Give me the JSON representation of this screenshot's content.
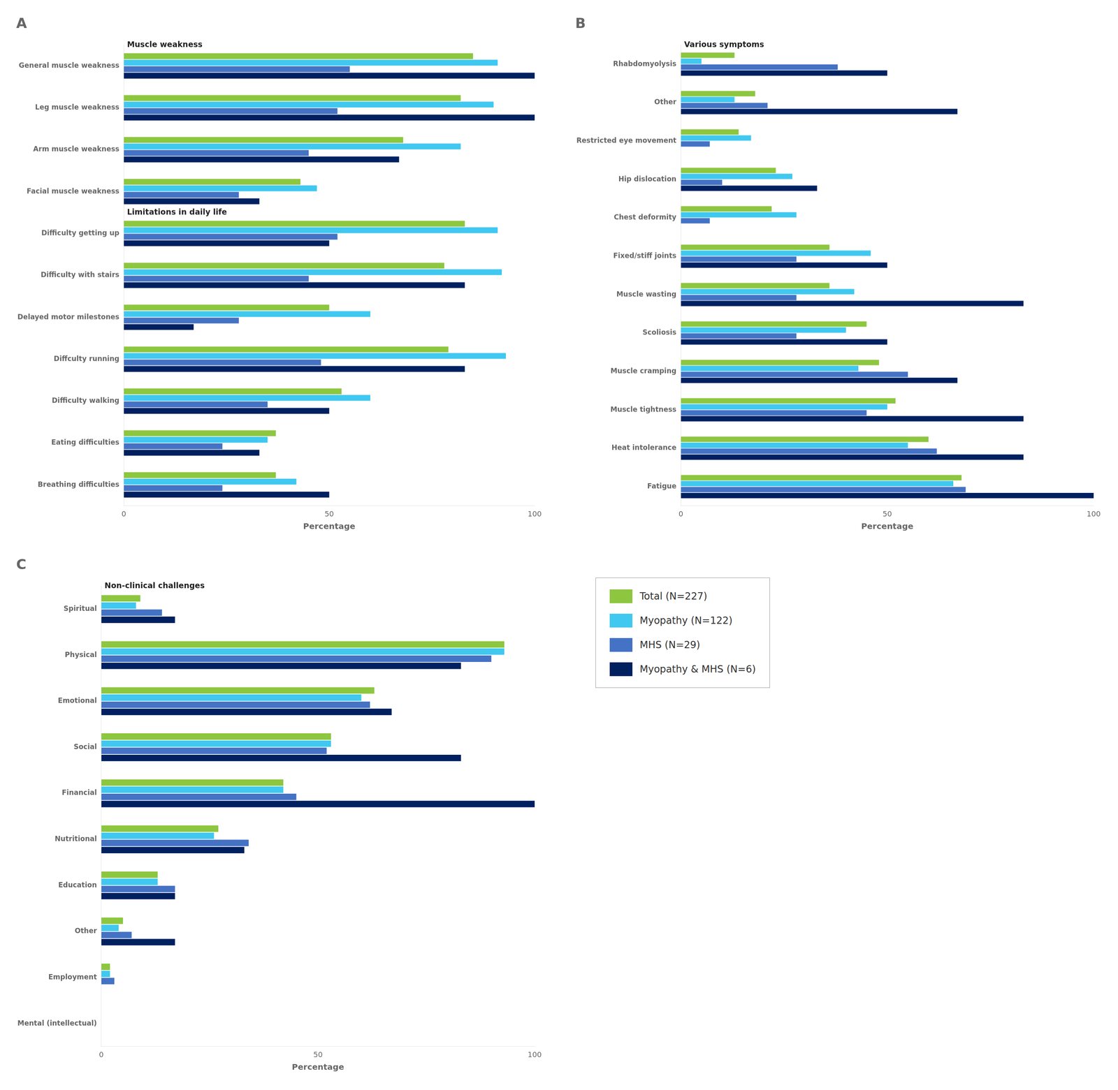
{
  "chart_data": [
    {
      "type": "bar",
      "orientation": "horizontal",
      "title": "A",
      "annotations": [
        {
          "text": "Muscle weakness",
          "above": "General muscle weakness"
        },
        {
          "text": "Limitations in daily life",
          "above": "Difficulty getting up"
        }
      ],
      "categories": [
        "General muscle weakness",
        "Leg muscle weakness",
        "Arm muscle weakness",
        "Facial muscle weakness",
        "Difficulty getting up",
        "Difficulty with stairs",
        "Delayed motor milestones",
        "Diffculty running",
        "Difficulty walking",
        "Eating difficulties",
        "Breathing difficulties"
      ],
      "series": [
        {
          "name": "Total (N=227)",
          "color": "#8DC63F",
          "values": [
            85,
            82,
            68,
            43,
            83,
            78,
            50,
            79,
            53,
            37,
            37
          ]
        },
        {
          "name": "Myopathy (N=122)",
          "color": "#40C8F0",
          "values": [
            91,
            90,
            82,
            47,
            91,
            92,
            60,
            93,
            60,
            35,
            42
          ]
        },
        {
          "name": "MHS (N=29)",
          "color": "#4472C4",
          "values": [
            55,
            52,
            45,
            28,
            52,
            45,
            28,
            48,
            35,
            24,
            24
          ]
        },
        {
          "name": "Myopathy & MHS (N=6)",
          "color": "#002060",
          "values": [
            100,
            100,
            67,
            33,
            50,
            83,
            17,
            83,
            50,
            33,
            50
          ]
        }
      ],
      "xlabel": "Percentage",
      "xlim": [
        0,
        100
      ],
      "xticks": [
        0,
        50,
        100
      ],
      "grid": false
    },
    {
      "type": "bar",
      "orientation": "horizontal",
      "title": "B",
      "annotations": [
        {
          "text": "Various symptoms",
          "above": "Rhabdomyolysis"
        }
      ],
      "categories": [
        "Rhabdomyolysis",
        "Other",
        "Restricted eye movement",
        "Hip dislocation",
        "Chest deformity",
        "Fixed/stiff joints",
        "Muscle wasting",
        "Scoliosis",
        "Muscle cramping",
        "Muscle tightness",
        "Heat intolerance",
        "Fatigue"
      ],
      "series": [
        {
          "name": "Total (N=227)",
          "color": "#8DC63F",
          "values": [
            13,
            18,
            14,
            23,
            22,
            36,
            36,
            45,
            48,
            52,
            60,
            68
          ]
        },
        {
          "name": "Myopathy (N=122)",
          "color": "#40C8F0",
          "values": [
            5,
            13,
            17,
            27,
            28,
            46,
            42,
            40,
            43,
            50,
            55,
            66
          ]
        },
        {
          "name": "MHS (N=29)",
          "color": "#4472C4",
          "values": [
            38,
            21,
            7,
            10,
            7,
            28,
            28,
            28,
            55,
            45,
            62,
            69
          ]
        },
        {
          "name": "Myopathy & MHS (N=6)",
          "color": "#002060",
          "values": [
            50,
            67,
            0,
            33,
            0,
            50,
            83,
            50,
            67,
            83,
            83,
            100
          ]
        }
      ],
      "xlabel": "Percentage",
      "xlim": [
        0,
        100
      ],
      "xticks": [
        0,
        50,
        100
      ],
      "grid": false
    },
    {
      "type": "bar",
      "orientation": "horizontal",
      "title": "C",
      "annotations": [
        {
          "text": "Non-clinical challenges",
          "above": "Spiritual"
        }
      ],
      "categories": [
        "Spiritual",
        "Physical",
        "Emotional",
        "Social",
        "Financial",
        "Nutritional",
        "Education",
        "Other",
        "Employment",
        "Mental (intellectual)"
      ],
      "series": [
        {
          "name": "Total (N=227)",
          "color": "#8DC63F",
          "values": [
            9,
            93,
            63,
            53,
            42,
            27,
            13,
            5,
            2,
            0
          ]
        },
        {
          "name": "Myopathy (N=122)",
          "color": "#40C8F0",
          "values": [
            8,
            93,
            60,
            53,
            42,
            26,
            13,
            4,
            2,
            0
          ]
        },
        {
          "name": "MHS (N=29)",
          "color": "#4472C4",
          "values": [
            14,
            90,
            62,
            52,
            45,
            34,
            17,
            7,
            3,
            0
          ]
        },
        {
          "name": "Myopathy & MHS (N=6)",
          "color": "#002060",
          "values": [
            17,
            83,
            67,
            83,
            100,
            33,
            17,
            17,
            0,
            0
          ]
        }
      ],
      "xlabel": "Percentage",
      "xlim": [
        0,
        100
      ],
      "xticks": [
        0,
        50,
        100
      ],
      "grid": false,
      "legend": "upper left"
    }
  ]
}
